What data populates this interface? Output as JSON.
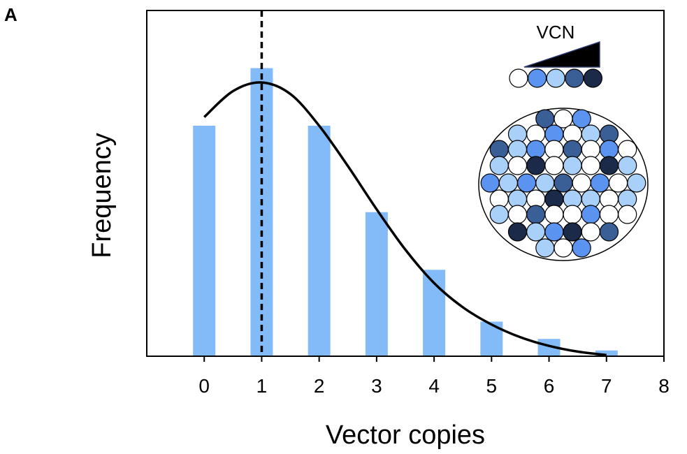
{
  "panel_label": "A",
  "chart_data": {
    "type": "bar",
    "title": "",
    "xlabel": "Vector copies",
    "ylabel": "Frequency",
    "xlim": [
      -1,
      8
    ],
    "ylim": [
      0,
      6
    ],
    "x_ticks": [
      0,
      1,
      2,
      3,
      4,
      5,
      6,
      7,
      8
    ],
    "x_tick_labels": [
      "0",
      "1",
      "2",
      "3",
      "4",
      "5",
      "6",
      "7",
      "8"
    ],
    "y_ticks_shown": false,
    "grid": false,
    "bars": {
      "x": [
        0,
        1,
        2,
        3,
        4,
        5,
        6,
        7
      ],
      "values": [
        4.0,
        5.0,
        4.0,
        2.5,
        1.5,
        0.6,
        0.3,
        0.1
      ],
      "color": "#82bbf7"
    },
    "fit_curve": {
      "x": [
        0,
        0.5,
        1,
        1.5,
        2,
        2.5,
        3,
        3.5,
        4,
        4.5,
        5,
        5.5,
        6,
        6.5,
        7
      ],
      "y": [
        4.15,
        4.6,
        4.75,
        4.55,
        4.0,
        3.3,
        2.55,
        1.85,
        1.27,
        0.85,
        0.55,
        0.33,
        0.18,
        0.08,
        0.02
      ],
      "color": "#000000"
    },
    "reference_line": {
      "x": 1,
      "style": "dashed",
      "color": "#000000"
    },
    "inset": {
      "label": "VCN",
      "legend_colors": [
        "#ffffff",
        "#5b93f0",
        "#a8d0f8",
        "#3a5f96",
        "#1a2a48"
      ],
      "cell_rows": [
        "DWM",
        "LWMWLD",
        "DLMWDWMW",
        "LWNWLWNL",
        "MLMLDWMWL",
        "WLWNLLWL",
        "LWDWWMWW",
        "NLMNWD",
        "LWM"
      ]
    }
  }
}
